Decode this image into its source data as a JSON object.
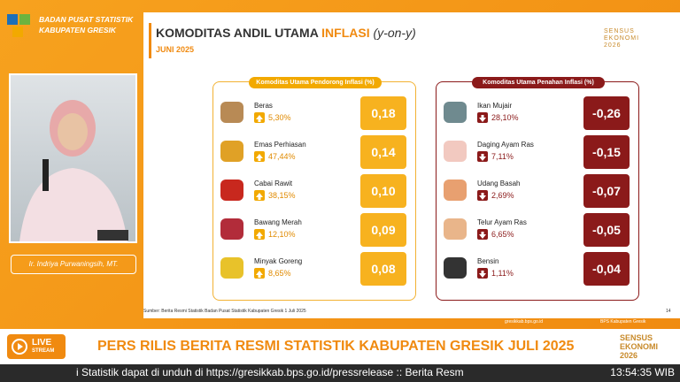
{
  "header": {
    "org": "BADAN PUSAT STATISTIK",
    "region": "KABUPATEN GRESIK"
  },
  "slide": {
    "title": "KOMODITAS ANDIL UTAMA",
    "title_highlight": "INFLASI",
    "title_suffix": "(y-on-y)",
    "subtitle": "JUNI 2025",
    "brand": {
      "line1": "SENSUS",
      "line2": "EKONOMI",
      "line3": "2026"
    },
    "panels": [
      {
        "title": "Komoditas Utama Pendorong Inflasi (%)",
        "items": [
          {
            "name": "Beras",
            "change": "5,30%",
            "andil": "0,18"
          },
          {
            "name": "Emas Perhiasan",
            "change": "47,44%",
            "andil": "0,14"
          },
          {
            "name": "Cabai Rawit",
            "change": "38,15%",
            "andil": "0,10"
          },
          {
            "name": "Bawang Merah",
            "change": "12,10%",
            "andil": "0,09"
          },
          {
            "name": "Minyak Goreng",
            "change": "8,65%",
            "andil": "0,08"
          }
        ]
      },
      {
        "title": "Komoditas Utama Penahan Inflasi (%)",
        "items": [
          {
            "name": "Ikan Mujair",
            "change": "28,10%",
            "andil": "-0,26"
          },
          {
            "name": "Daging Ayam Ras",
            "change": "7,11%",
            "andil": "-0,15"
          },
          {
            "name": "Udang Basah",
            "change": "2,69%",
            "andil": "-0,07"
          },
          {
            "name": "Telur Ayam Ras",
            "change": "6,65%",
            "andil": "-0,05"
          },
          {
            "name": "Bensin",
            "change": "1,11%",
            "andil": "-0,04"
          }
        ]
      }
    ],
    "source": "Sumber: Berita Resmi Statistik Badan Pusat Statistik Kabupaten Gresik 1 Juli 2025",
    "page": "14",
    "website": "gresikkab.bps.go.id",
    "social": "BPS Kabupaten Gresik"
  },
  "presenter": "Ir. Indriya Purwaningsih, MT.",
  "live": {
    "label": "LIVE",
    "sub": "STREAM"
  },
  "banner": "PERS RILIS BERITA RESMI STATISTIK KABUPATEN GRESIK JULI 2025",
  "banner_brand": {
    "line1": "SENSUS",
    "line2": "EKONOMI",
    "line3": "2026"
  },
  "ticker": "i Statistik dapat di unduh di https://gresikkab.bps.go.id/pressrelease :: Berita Resm",
  "time": "13:54:35 WIB"
}
